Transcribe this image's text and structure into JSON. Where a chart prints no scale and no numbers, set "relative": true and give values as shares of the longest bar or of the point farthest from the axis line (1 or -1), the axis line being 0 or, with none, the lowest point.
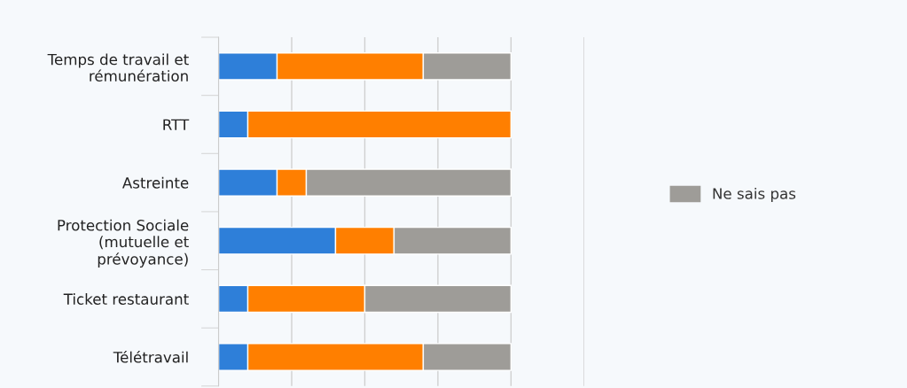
{
  "chart_data": {
    "type": "bar",
    "orientation": "horizontal",
    "stacked": true,
    "relative": true,
    "categories": [
      "Temps de travail et\nrémunération",
      "RTT",
      "Astreinte",
      "Protection Sociale\n(mutuelle et\nprévoyance)",
      "Ticket restaurant",
      "Télétravail"
    ],
    "series": [
      {
        "color": "#2e7fd9",
        "values": [
          0.2,
          0.1,
          0.2,
          0.4,
          0.1,
          0.1
        ]
      },
      {
        "color": "#ff7f00",
        "values": [
          0.5,
          0.9,
          0.1,
          0.2,
          0.4,
          0.6
        ]
      },
      {
        "name": "Ne sais pas",
        "color": "#9e9c98",
        "values": [
          0.3,
          null,
          0.7,
          0.4,
          0.5,
          0.3
        ]
      }
    ],
    "grid": "x",
    "legend": "right"
  }
}
